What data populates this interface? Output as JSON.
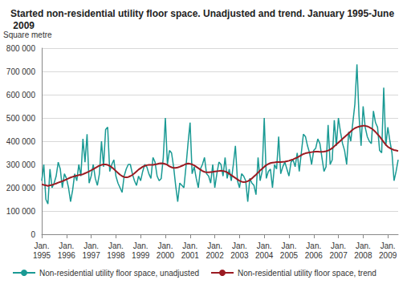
{
  "chart_data": {
    "type": "line",
    "title": "Started non-residential utility floor space. Unadjusted and trend. January 1995-June 2009",
    "y_label": "Square metre",
    "categories": [
      "Jan.\n1995",
      null,
      null,
      null,
      null,
      null,
      null,
      null,
      null,
      null,
      null,
      null,
      "Jan.\n1996",
      null,
      null,
      null,
      null,
      null,
      null,
      null,
      null,
      null,
      null,
      null,
      "Jan.\n1997",
      null,
      null,
      null,
      null,
      null,
      null,
      null,
      null,
      null,
      null,
      null,
      "Jan.\n1998",
      null,
      null,
      null,
      null,
      null,
      null,
      null,
      null,
      null,
      null,
      null,
      "Jan.\n1999",
      null,
      null,
      null,
      null,
      null,
      null,
      null,
      null,
      null,
      null,
      null,
      "Jan.\n2000",
      null,
      null,
      null,
      null,
      null,
      null,
      null,
      null,
      null,
      null,
      null,
      "Jan.\n2001",
      null,
      null,
      null,
      null,
      null,
      null,
      null,
      null,
      null,
      null,
      null,
      "Jan.\n2002",
      null,
      null,
      null,
      null,
      null,
      null,
      null,
      null,
      null,
      null,
      null,
      "Jan.\n2003",
      null,
      null,
      null,
      null,
      null,
      null,
      null,
      null,
      null,
      null,
      null,
      "Jan.\n2004",
      null,
      null,
      null,
      null,
      null,
      null,
      null,
      null,
      null,
      null,
      null,
      "Jan.\n2005",
      null,
      null,
      null,
      null,
      null,
      null,
      null,
      null,
      null,
      null,
      null,
      "Jan.\n2006",
      null,
      null,
      null,
      null,
      null,
      null,
      null,
      null,
      null,
      null,
      null,
      "Jan.\n2007",
      null,
      null,
      null,
      null,
      null,
      null,
      null,
      null,
      null,
      null,
      null,
      "Jan.\n2008",
      null,
      null,
      null,
      null,
      null,
      null,
      null,
      null,
      null,
      null,
      null,
      "Jan.\n2009",
      null,
      null,
      null,
      null,
      null
    ],
    "series": [
      {
        "name": "Non-residential utility floor space, unadjusted",
        "color": "#1a9a94",
        "type": "line",
        "values": [
          230000,
          300000,
          150000,
          130000,
          280000,
          200000,
          220000,
          250000,
          310000,
          280000,
          200000,
          260000,
          240000,
          200000,
          140000,
          190000,
          260000,
          230000,
          300000,
          250000,
          410000,
          310000,
          430000,
          220000,
          250000,
          300000,
          240000,
          210000,
          260000,
          400000,
          290000,
          450000,
          460000,
          270000,
          300000,
          320000,
          250000,
          220000,
          200000,
          180000,
          250000,
          280000,
          300000,
          300000,
          260000,
          230000,
          210000,
          250000,
          230000,
          270000,
          300000,
          290000,
          260000,
          240000,
          330000,
          310000,
          250000,
          230000,
          240000,
          330000,
          500000,
          300000,
          360000,
          350000,
          290000,
          210000,
          140000,
          220000,
          210000,
          200000,
          290000,
          390000,
          480000,
          260000,
          290000,
          240000,
          200000,
          280000,
          300000,
          330000,
          260000,
          250000,
          220000,
          300000,
          200000,
          260000,
          310000,
          300000,
          250000,
          330000,
          240000,
          280000,
          230000,
          300000,
          380000,
          230000,
          200000,
          260000,
          250000,
          230000,
          140000,
          240000,
          220000,
          210000,
          170000,
          330000,
          230000,
          270000,
          500000,
          240000,
          270000,
          280000,
          200000,
          300000,
          280000,
          420000,
          260000,
          290000,
          310000,
          280000,
          250000,
          310000,
          320000,
          290000,
          350000,
          270000,
          350000,
          430000,
          420000,
          380000,
          350000,
          300000,
          360000,
          370000,
          410000,
          390000,
          330000,
          270000,
          290000,
          470000,
          300000,
          320000,
          490000,
          380000,
          500000,
          440000,
          390000,
          360000,
          300000,
          440000,
          400000,
          480000,
          560000,
          730000,
          510000,
          380000,
          550000,
          460000,
          420000,
          400000,
          390000,
          530000,
          480000,
          460000,
          360000,
          350000,
          630000,
          380000,
          460000,
          400000,
          350000,
          230000,
          270000,
          320000
        ]
      },
      {
        "name": "Non-residential utility floor space, trend",
        "color": "#9b1b22",
        "type": "line",
        "values": [
          215000,
          212000,
          210000,
          208000,
          210000,
          212000,
          215000,
          218000,
          222000,
          225000,
          228000,
          232000,
          236000,
          240000,
          244000,
          247000,
          250000,
          252000,
          254000,
          256000,
          258000,
          262000,
          266000,
          270000,
          275000,
          280000,
          285000,
          290000,
          295000,
          298000,
          300000,
          300000,
          298000,
          294000,
          288000,
          280000,
          272000,
          264000,
          256000,
          250000,
          246000,
          245000,
          246000,
          250000,
          255000,
          262000,
          270000,
          278000,
          284000,
          290000,
          294000,
          297000,
          298000,
          298000,
          298000,
          300000,
          302000,
          304000,
          305000,
          304000,
          302000,
          298000,
          292000,
          288000,
          285000,
          285000,
          287000,
          290000,
          294000,
          298000,
          302000,
          304000,
          303000,
          300000,
          296000,
          290000,
          284000,
          278000,
          272000,
          268000,
          266000,
          266000,
          267000,
          268000,
          270000,
          271000,
          272000,
          273000,
          272000,
          270000,
          266000,
          260000,
          254000,
          248000,
          242000,
          236000,
          230000,
          226000,
          224000,
          225000,
          228000,
          233000,
          240000,
          248000,
          256000,
          265000,
          274000,
          282000,
          290000,
          297000,
          302000,
          306000,
          308000,
          309000,
          310000,
          310000,
          310000,
          311000,
          312000,
          314000,
          316000,
          319000,
          322000,
          326000,
          330000,
          335000,
          340000,
          345000,
          348000,
          350000,
          352000,
          353000,
          354000,
          355000,
          355000,
          354000,
          354000,
          355000,
          357000,
          360000,
          364000,
          370000,
          378000,
          386000,
          394000,
          402000,
          410000,
          418000,
          426000,
          434000,
          442000,
          450000,
          456000,
          460000,
          463000,
          465000,
          466000,
          466000,
          464000,
          460000,
          455000,
          448000,
          440000,
          430000,
          420000,
          408000,
          396000,
          385000,
          376000,
          370000,
          366000,
          362000,
          360000,
          358000
        ]
      }
    ],
    "ylim": [
      0,
      800000
    ],
    "yticks": [
      0,
      {
        "value": 100000,
        "label": "100 000"
      },
      {
        "value": 200000,
        "label": "200 000"
      },
      {
        "value": 300000,
        "label": "300 000"
      },
      {
        "value": 400000,
        "label": "400 000"
      },
      {
        "value": 500000,
        "label": "500 000"
      },
      {
        "value": 600000,
        "label": "600 000"
      },
      {
        "value": 700000,
        "label": "700 000"
      },
      {
        "value": 800000,
        "label": "800 000"
      }
    ],
    "grid": true,
    "legend": "bottom"
  }
}
